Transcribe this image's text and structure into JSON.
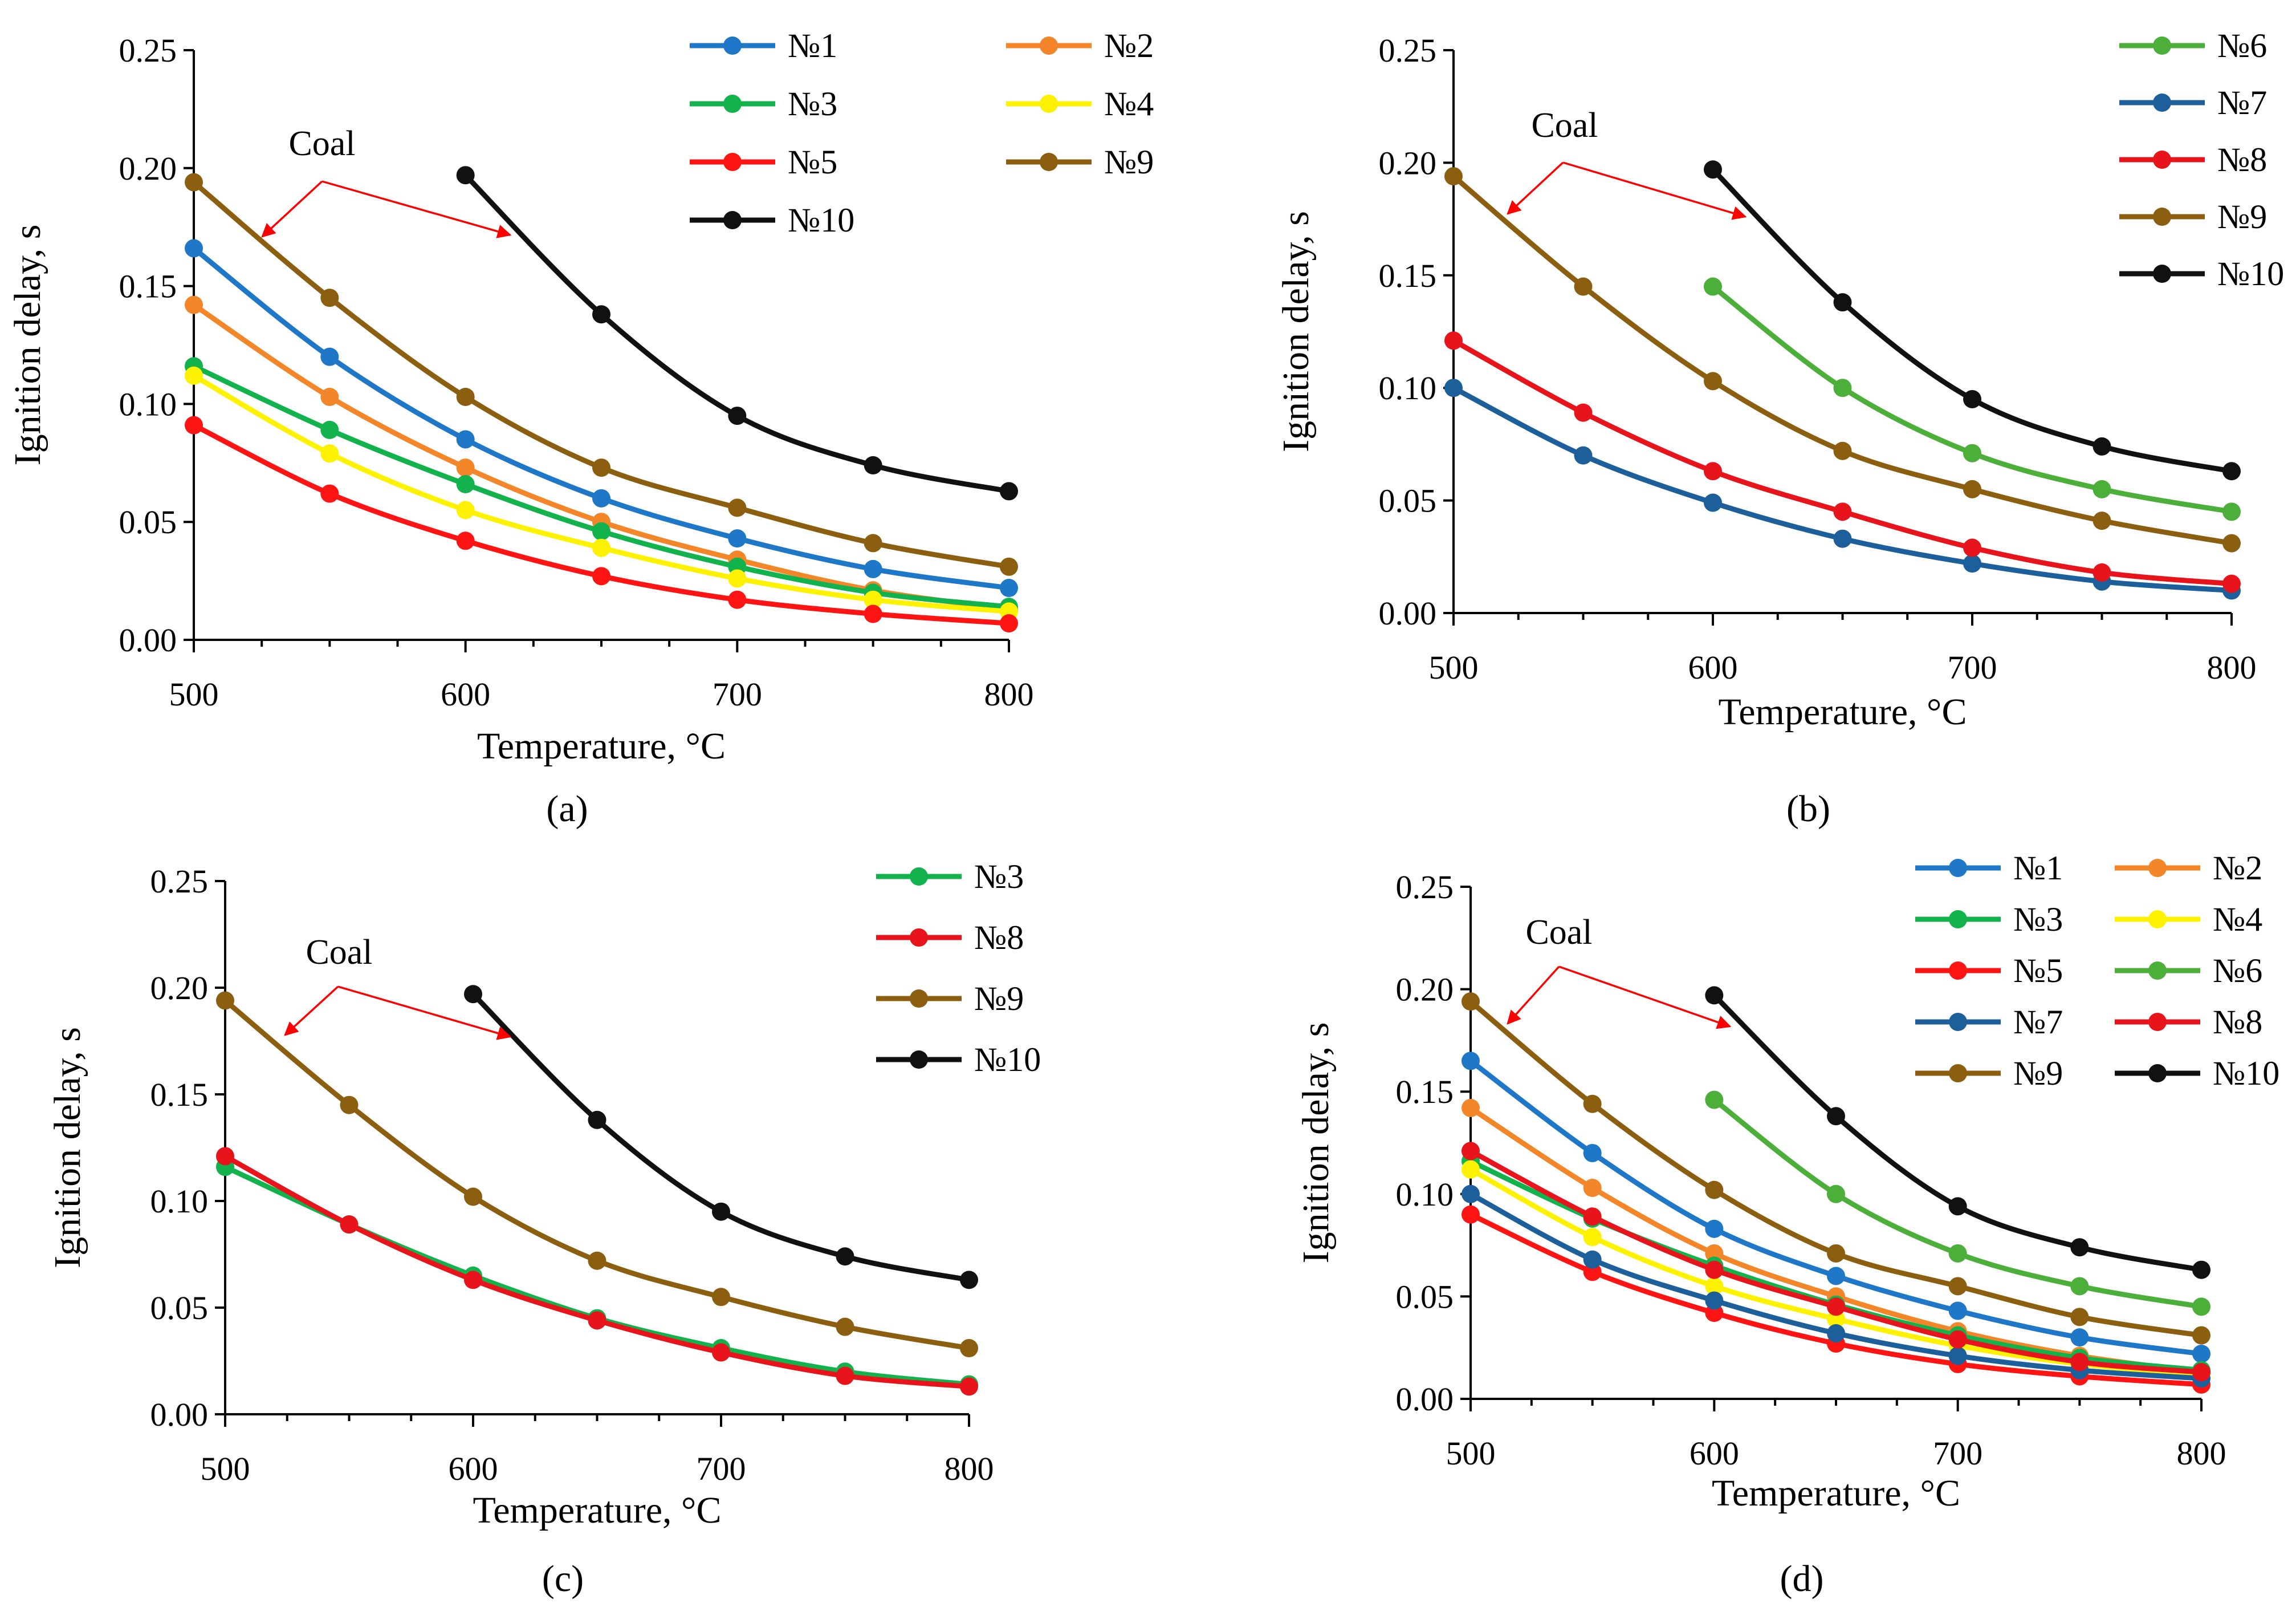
{
  "colors": {
    "n1": "#1f77c8",
    "n2": "#f4862a",
    "n3": "#12b24c",
    "n4": "#fff200",
    "n5": "#ff1414",
    "n6": "#4caf3a",
    "n7": "#1d5f9a",
    "n8": "#e8141c",
    "n9": "#8b5e10",
    "n10": "#111111",
    "arrow": "#ff0000"
  },
  "chart_data": [
    {
      "type": "line",
      "panel_label": "(a)",
      "panel_letter": "a",
      "xlabel": "Temperature, °C",
      "ylabel": "Ignition delay, s",
      "xlim": [
        500,
        800
      ],
      "ylim": [
        0,
        0.25
      ],
      "x_ticks": [
        "500",
        "600",
        "700",
        "800"
      ],
      "y_ticks": [
        "0.00",
        "0.05",
        "0.10",
        "0.15",
        "0.20",
        "0.25"
      ],
      "annotation": "Coal",
      "legend_columns": 2,
      "series": [
        {
          "name": "№1",
          "color_key": "n1",
          "x": [
            500,
            550,
            600,
            650,
            700,
            750,
            800
          ],
          "values": [
            0.166,
            0.12,
            0.085,
            0.06,
            0.043,
            0.03,
            0.022
          ]
        },
        {
          "name": "№2",
          "color_key": "n2",
          "x": [
            500,
            550,
            600,
            650,
            700,
            750,
            800
          ],
          "values": [
            0.142,
            0.103,
            0.073,
            0.05,
            0.034,
            0.021,
            0.013
          ]
        },
        {
          "name": "№3",
          "color_key": "n3",
          "x": [
            500,
            550,
            600,
            650,
            700,
            750,
            800
          ],
          "values": [
            0.116,
            0.089,
            0.066,
            0.046,
            0.031,
            0.02,
            0.014
          ]
        },
        {
          "name": "№4",
          "color_key": "n4",
          "x": [
            500,
            550,
            600,
            650,
            700,
            750,
            800
          ],
          "values": [
            0.112,
            0.079,
            0.055,
            0.039,
            0.026,
            0.017,
            0.012
          ]
        },
        {
          "name": "№5",
          "color_key": "n5",
          "x": [
            500,
            550,
            600,
            650,
            700,
            750,
            800
          ],
          "values": [
            0.091,
            0.062,
            0.042,
            0.027,
            0.017,
            0.011,
            0.007
          ]
        },
        {
          "name": "№9",
          "color_key": "n9",
          "x": [
            500,
            550,
            600,
            650,
            700,
            750,
            800
          ],
          "values": [
            0.194,
            0.145,
            0.103,
            0.073,
            0.056,
            0.041,
            0.031
          ]
        },
        {
          "name": "№10",
          "color_key": "n10",
          "x": [
            600,
            650,
            700,
            750,
            800
          ],
          "values": [
            0.197,
            0.138,
            0.095,
            0.074,
            0.063
          ]
        }
      ]
    },
    {
      "type": "line",
      "panel_label": "(b)",
      "panel_letter": "b",
      "xlabel": "Temperature, °C",
      "ylabel": "Ignition delay, s",
      "xlim": [
        500,
        800
      ],
      "ylim": [
        0,
        0.25
      ],
      "x_ticks": [
        "500",
        "600",
        "700",
        "800"
      ],
      "y_ticks": [
        "0.00",
        "0.05",
        "0.10",
        "0.15",
        "0.20",
        "0.25"
      ],
      "annotation": "Coal",
      "legend_columns": 1,
      "series": [
        {
          "name": "№6",
          "color_key": "n6",
          "x": [
            600,
            650,
            700,
            750,
            800
          ],
          "values": [
            0.145,
            0.1,
            0.071,
            0.055,
            0.045
          ]
        },
        {
          "name": "№7",
          "color_key": "n7",
          "x": [
            500,
            550,
            600,
            650,
            700,
            750,
            800
          ],
          "values": [
            0.1,
            0.07,
            0.049,
            0.033,
            0.022,
            0.014,
            0.01
          ]
        },
        {
          "name": "№8",
          "color_key": "n8",
          "x": [
            500,
            550,
            600,
            650,
            700,
            750,
            800
          ],
          "values": [
            0.121,
            0.089,
            0.063,
            0.045,
            0.029,
            0.018,
            0.013
          ]
        },
        {
          "name": "№9",
          "color_key": "n9",
          "x": [
            500,
            550,
            600,
            650,
            700,
            750,
            800
          ],
          "values": [
            0.194,
            0.145,
            0.103,
            0.072,
            0.055,
            0.041,
            0.031
          ]
        },
        {
          "name": "№10",
          "color_key": "n10",
          "x": [
            600,
            650,
            700,
            750,
            800
          ],
          "values": [
            0.197,
            0.138,
            0.095,
            0.074,
            0.063
          ]
        }
      ]
    },
    {
      "type": "line",
      "panel_label": "(c)",
      "panel_letter": "c",
      "xlabel": "Temperature, °C",
      "ylabel": "Ignition delay, s",
      "xlim": [
        500,
        800
      ],
      "ylim": [
        0,
        0.25
      ],
      "x_ticks": [
        "500",
        "600",
        "700",
        "800"
      ],
      "y_ticks": [
        "0.00",
        "0.05",
        "0.10",
        "0.15",
        "0.20",
        "0.25"
      ],
      "annotation": "Coal",
      "legend_columns": 1,
      "series": [
        {
          "name": "№3",
          "color_key": "n3",
          "x": [
            500,
            550,
            600,
            650,
            700,
            750,
            800
          ],
          "values": [
            0.116,
            0.089,
            0.065,
            0.045,
            0.031,
            0.02,
            0.014
          ]
        },
        {
          "name": "№8",
          "color_key": "n8",
          "x": [
            500,
            550,
            600,
            650,
            700,
            750,
            800
          ],
          "values": [
            0.121,
            0.089,
            0.063,
            0.044,
            0.029,
            0.018,
            0.013
          ]
        },
        {
          "name": "№9",
          "color_key": "n9",
          "x": [
            500,
            550,
            600,
            650,
            700,
            750,
            800
          ],
          "values": [
            0.194,
            0.145,
            0.102,
            0.072,
            0.055,
            0.041,
            0.031
          ]
        },
        {
          "name": "№10",
          "color_key": "n10",
          "x": [
            600,
            650,
            700,
            750,
            800
          ],
          "values": [
            0.197,
            0.138,
            0.095,
            0.074,
            0.063
          ]
        }
      ]
    },
    {
      "type": "line",
      "panel_label": "(d)",
      "panel_letter": "d",
      "xlabel": "Temperature, °C",
      "ylabel": "Ignition delay, s",
      "xlim": [
        500,
        800
      ],
      "ylim": [
        0,
        0.25
      ],
      "x_ticks": [
        "500",
        "600",
        "700",
        "800"
      ],
      "y_ticks": [
        "0.00",
        "0.05",
        "0.10",
        "0.15",
        "0.20",
        "0.25"
      ],
      "annotation": "Coal",
      "legend_columns": 2,
      "series": [
        {
          "name": "№1",
          "color_key": "n1",
          "x": [
            500,
            550,
            600,
            650,
            700,
            750,
            800
          ],
          "values": [
            0.165,
            0.12,
            0.083,
            0.06,
            0.043,
            0.03,
            0.022
          ]
        },
        {
          "name": "№2",
          "color_key": "n2",
          "x": [
            500,
            550,
            600,
            650,
            700,
            750,
            800
          ],
          "values": [
            0.142,
            0.103,
            0.071,
            0.05,
            0.033,
            0.021,
            0.013
          ]
        },
        {
          "name": "№3",
          "color_key": "n3",
          "x": [
            500,
            550,
            600,
            650,
            700,
            750,
            800
          ],
          "values": [
            0.116,
            0.088,
            0.065,
            0.046,
            0.031,
            0.02,
            0.014
          ]
        },
        {
          "name": "№4",
          "color_key": "n4",
          "x": [
            500,
            550,
            600,
            650,
            700,
            750,
            800
          ],
          "values": [
            0.112,
            0.079,
            0.055,
            0.039,
            0.026,
            0.017,
            0.012
          ]
        },
        {
          "name": "№5",
          "color_key": "n5",
          "x": [
            500,
            550,
            600,
            650,
            700,
            750,
            800
          ],
          "values": [
            0.09,
            0.062,
            0.042,
            0.027,
            0.017,
            0.011,
            0.007
          ]
        },
        {
          "name": "№6",
          "color_key": "n6",
          "x": [
            600,
            650,
            700,
            750,
            800
          ],
          "values": [
            0.146,
            0.1,
            0.071,
            0.055,
            0.045
          ]
        },
        {
          "name": "№7",
          "color_key": "n7",
          "x": [
            500,
            550,
            600,
            650,
            700,
            750,
            800
          ],
          "values": [
            0.1,
            0.068,
            0.048,
            0.032,
            0.021,
            0.014,
            0.01
          ]
        },
        {
          "name": "№8",
          "color_key": "n8",
          "x": [
            500,
            550,
            600,
            650,
            700,
            750,
            800
          ],
          "values": [
            0.121,
            0.089,
            0.063,
            0.045,
            0.029,
            0.018,
            0.013
          ]
        },
        {
          "name": "№9",
          "color_key": "n9",
          "x": [
            500,
            550,
            600,
            650,
            700,
            750,
            800
          ],
          "values": [
            0.194,
            0.144,
            0.102,
            0.071,
            0.055,
            0.04,
            0.031
          ]
        },
        {
          "name": "№10",
          "color_key": "n10",
          "x": [
            600,
            650,
            700,
            750,
            800
          ],
          "values": [
            0.197,
            0.138,
            0.094,
            0.074,
            0.063
          ]
        }
      ]
    }
  ]
}
